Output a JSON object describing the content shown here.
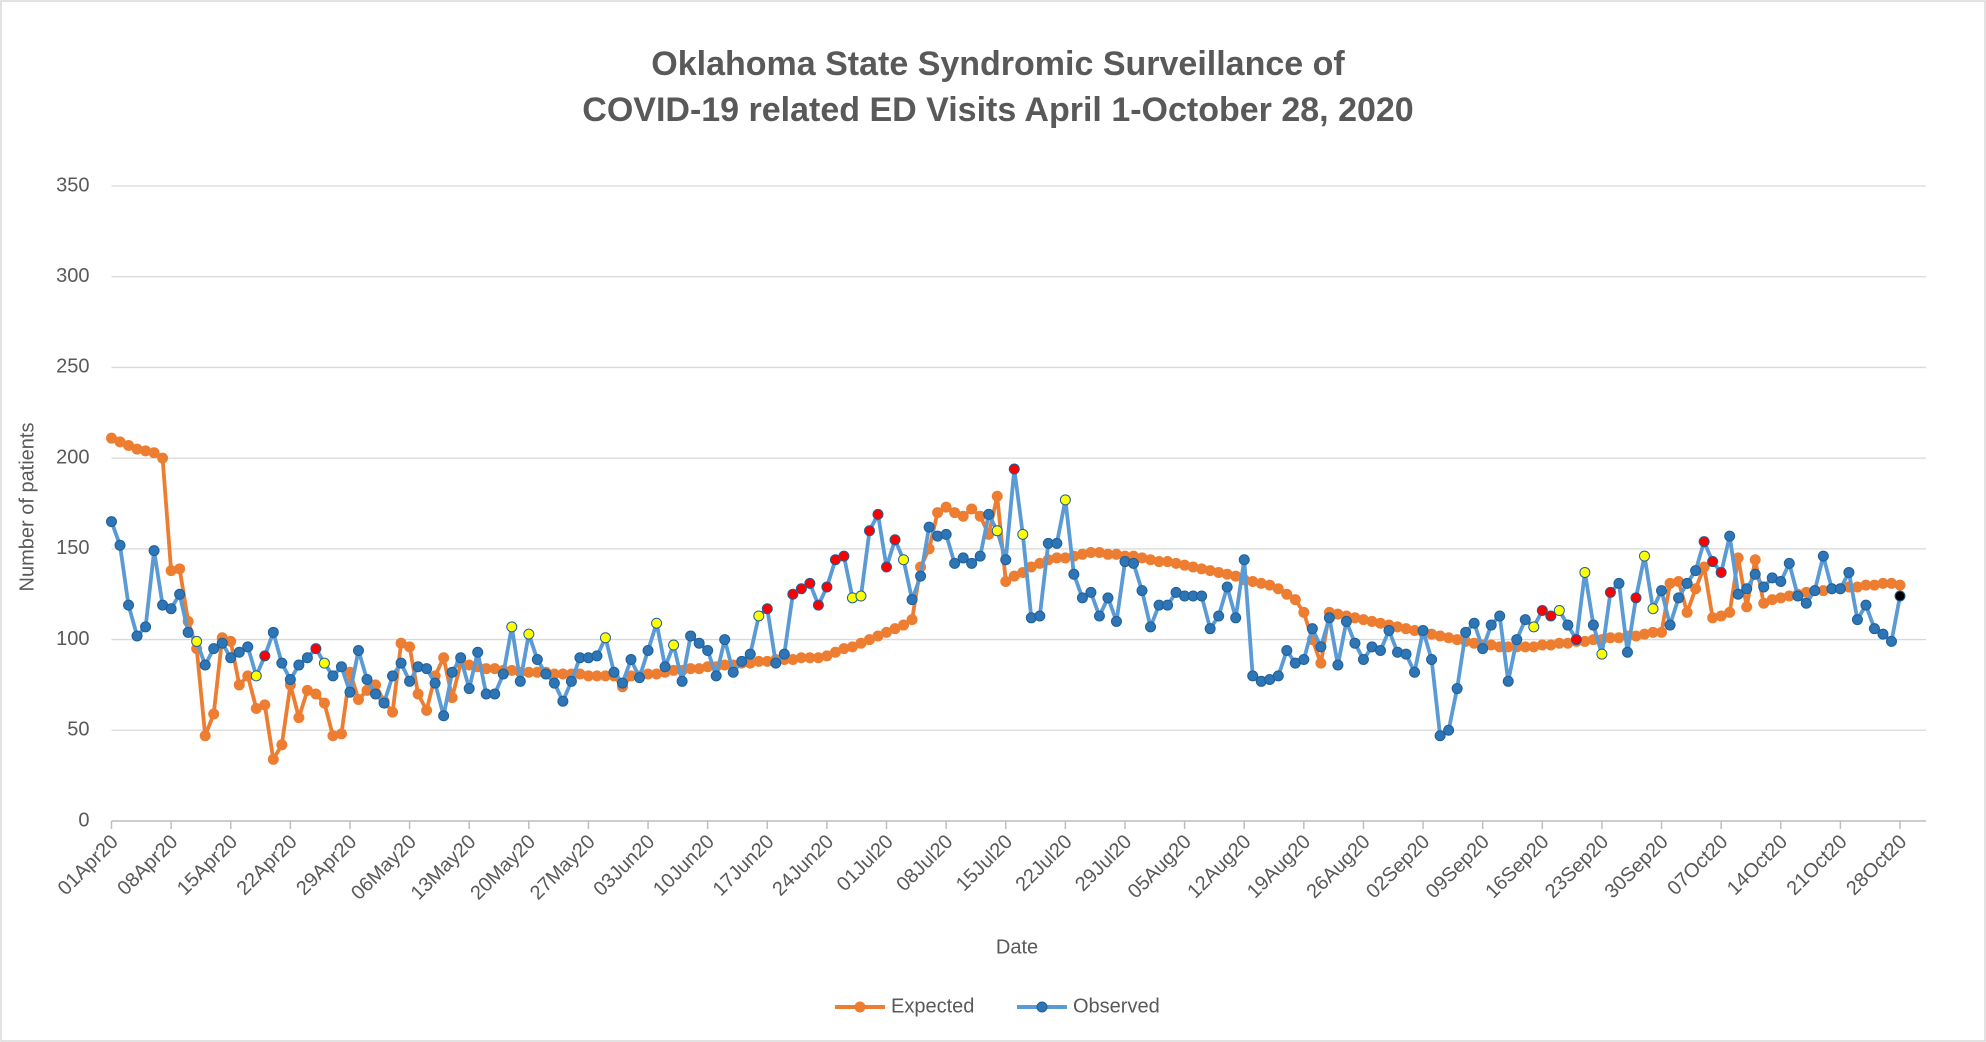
{
  "chart_data": {
    "type": "line",
    "title": [
      "Oklahoma State Syndromic Surveillance of",
      "COVID-19 related ED Visits April 1-October 28, 2020"
    ],
    "x_label": "Date",
    "y_label": "Number of patients",
    "ylim": [
      0,
      350
    ],
    "yticks": [
      0,
      50,
      100,
      150,
      200,
      250,
      300,
      350
    ],
    "grid": true,
    "legend": "bottom",
    "categories": [
      "01Apr20",
      null,
      null,
      null,
      null,
      null,
      null,
      "08Apr20",
      null,
      null,
      null,
      null,
      null,
      null,
      "15Apr20",
      null,
      null,
      null,
      null,
      null,
      null,
      "22Apr20",
      null,
      null,
      null,
      null,
      null,
      null,
      "29Apr20",
      null,
      null,
      null,
      null,
      null,
      null,
      "06May20",
      null,
      null,
      null,
      null,
      null,
      null,
      "13May20",
      null,
      null,
      null,
      null,
      null,
      null,
      "20May20",
      null,
      null,
      null,
      null,
      null,
      null,
      "27May20",
      null,
      null,
      null,
      null,
      null,
      null,
      "03Jun20",
      null,
      null,
      null,
      null,
      null,
      null,
      "10Jun20",
      null,
      null,
      null,
      null,
      null,
      null,
      "17Jun20",
      null,
      null,
      null,
      null,
      null,
      null,
      "24Jun20",
      null,
      null,
      null,
      null,
      null,
      null,
      "01Jul20",
      null,
      null,
      null,
      null,
      null,
      null,
      "08Jul20",
      null,
      null,
      null,
      null,
      null,
      null,
      "15Jul20",
      null,
      null,
      null,
      null,
      null,
      null,
      "22Jul20",
      null,
      null,
      null,
      null,
      null,
      null,
      "29Jul20",
      null,
      null,
      null,
      null,
      null,
      null,
      "05Aug20",
      null,
      null,
      null,
      null,
      null,
      null,
      "12Aug20",
      null,
      null,
      null,
      null,
      null,
      null,
      "19Aug20",
      null,
      null,
      null,
      null,
      null,
      null,
      "26Aug20",
      null,
      null,
      null,
      null,
      null,
      null,
      "02Sep20",
      null,
      null,
      null,
      null,
      null,
      null,
      "09Sep20",
      null,
      null,
      null,
      null,
      null,
      null,
      "16Sep20",
      null,
      null,
      null,
      null,
      null,
      null,
      "23Sep20",
      null,
      null,
      null,
      null,
      null,
      null,
      "30Sep20",
      null,
      null,
      null,
      null,
      null,
      null,
      "07Oct20",
      null,
      null,
      null,
      null,
      null,
      null,
      "14Oct20",
      null,
      null,
      null,
      null,
      null,
      null,
      "21Oct20",
      null,
      null,
      null,
      null,
      null,
      null,
      "28Oct20"
    ],
    "series": [
      {
        "name": "Expected",
        "color": "#ed7d31",
        "marker_color": "#ed7d31",
        "values": [
          211,
          209,
          207,
          205,
          204,
          203,
          200,
          138,
          139,
          110,
          95,
          47,
          59,
          101,
          99,
          75,
          80,
          62,
          64,
          34,
          42,
          75,
          57,
          72,
          70,
          65,
          47,
          48,
          82,
          67,
          72,
          75,
          66,
          60,
          98,
          96,
          70,
          61,
          80,
          90,
          68,
          87,
          86,
          85,
          84,
          84,
          83,
          83,
          82,
          82,
          82,
          82,
          81,
          81,
          81,
          81,
          80,
          80,
          80,
          80,
          74,
          80,
          80,
          81,
          81,
          82,
          83,
          83,
          84,
          84,
          85,
          85,
          86,
          86,
          87,
          87,
          88,
          88,
          89,
          89,
          89,
          90,
          90,
          90,
          91,
          93,
          95,
          96,
          98,
          100,
          102,
          104,
          106,
          108,
          111,
          140,
          150,
          170,
          173,
          170,
          168,
          172,
          168,
          158,
          179,
          132,
          135,
          137,
          140,
          142,
          144,
          145,
          145,
          146,
          147,
          148,
          148,
          147,
          147,
          146,
          146,
          145,
          144,
          143,
          143,
          142,
          141,
          140,
          139,
          138,
          137,
          136,
          135,
          133,
          132,
          131,
          130,
          128,
          125,
          122,
          115,
          100,
          87,
          115,
          114,
          113,
          112,
          111,
          110,
          109,
          108,
          107,
          106,
          105,
          104,
          103,
          102,
          101,
          100,
          99,
          98,
          97,
          97,
          96,
          96,
          96,
          96,
          96,
          97,
          97,
          98,
          98,
          99,
          99,
          100,
          100,
          101,
          101,
          102,
          102,
          103,
          104,
          104,
          131,
          132,
          115,
          128,
          140,
          112,
          113,
          115,
          145,
          118,
          144,
          120,
          122,
          123,
          124,
          125,
          126,
          127,
          127,
          128,
          128,
          129,
          129,
          130,
          130,
          131,
          131,
          130
        ]
      },
      {
        "name": "Observed",
        "color": "#5b9bd5",
        "values": [
          165,
          152,
          119,
          102,
          107,
          149,
          119,
          117,
          125,
          104,
          99,
          86,
          95,
          98,
          90,
          93,
          96,
          80,
          91,
          104,
          87,
          78,
          86,
          90,
          95,
          87,
          80,
          85,
          71,
          94,
          78,
          70,
          65,
          80,
          87,
          77,
          85,
          84,
          76,
          58,
          82,
          90,
          73,
          93,
          70,
          70,
          81,
          107,
          77,
          103,
          89,
          81,
          76,
          66,
          77,
          90,
          90,
          91,
          101,
          82,
          76,
          89,
          79,
          94,
          109,
          85,
          97,
          77,
          102,
          98,
          94,
          80,
          100,
          82,
          88,
          92,
          113,
          117,
          87,
          92,
          125,
          128,
          131,
          119,
          129,
          144,
          146,
          123,
          124,
          160,
          169,
          140,
          155,
          144,
          122,
          135,
          162,
          157,
          158,
          142,
          145,
          142,
          146,
          169,
          160,
          144,
          194,
          158,
          112,
          113,
          153,
          153,
          177,
          136,
          123,
          126,
          113,
          123,
          110,
          143,
          142,
          127,
          107,
          119,
          119,
          126,
          124,
          124,
          124,
          106,
          113,
          129,
          112,
          144,
          80,
          77,
          78,
          80,
          94,
          87,
          89,
          106,
          96,
          112,
          86,
          110,
          98,
          89,
          96,
          94,
          105,
          93,
          92,
          82,
          105,
          89,
          47,
          50,
          73,
          104,
          109,
          95,
          108,
          113,
          77,
          100,
          111,
          107,
          116,
          113,
          116,
          108,
          100,
          137,
          108,
          92,
          126,
          131,
          93,
          123,
          146,
          117,
          127,
          108,
          123,
          131,
          138,
          154,
          143,
          137,
          157,
          125,
          128,
          136,
          129,
          134,
          132,
          142,
          124,
          120,
          127,
          146,
          128,
          128,
          137,
          111,
          119,
          106,
          103,
          99,
          124
        ],
        "point_colors": [
          "#2e75b6",
          "#2e75b6",
          "#2e75b6",
          "#2e75b6",
          "#2e75b6",
          "#2e75b6",
          "#2e75b6",
          "#2e75b6",
          "#2e75b6",
          "#2e75b6",
          "#ffff00",
          "#2e75b6",
          "#2e75b6",
          "#2e75b6",
          "#2e75b6",
          "#2e75b6",
          "#2e75b6",
          "#ffff00",
          "#ff0000",
          "#2e75b6",
          "#2e75b6",
          "#2e75b6",
          "#2e75b6",
          "#2e75b6",
          "#ff0000",
          "#ffff00",
          "#2e75b6",
          "#2e75b6",
          "#2e75b6",
          "#2e75b6",
          "#2e75b6",
          "#2e75b6",
          "#2e75b6",
          "#2e75b6",
          "#2e75b6",
          "#2e75b6",
          "#2e75b6",
          "#2e75b6",
          "#2e75b6",
          "#2e75b6",
          "#2e75b6",
          "#2e75b6",
          "#2e75b6",
          "#2e75b6",
          "#2e75b6",
          "#2e75b6",
          "#2e75b6",
          "#ffff00",
          "#2e75b6",
          "#ffff00",
          "#2e75b6",
          "#2e75b6",
          "#2e75b6",
          "#2e75b6",
          "#2e75b6",
          "#2e75b6",
          "#2e75b6",
          "#2e75b6",
          "#ffff00",
          "#2e75b6",
          "#2e75b6",
          "#2e75b6",
          "#2e75b6",
          "#2e75b6",
          "#ffff00",
          "#2e75b6",
          "#ffff00",
          "#2e75b6",
          "#2e75b6",
          "#2e75b6",
          "#2e75b6",
          "#2e75b6",
          "#2e75b6",
          "#2e75b6",
          "#2e75b6",
          "#2e75b6",
          "#ffff00",
          "#ff0000",
          "#2e75b6",
          "#2e75b6",
          "#ff0000",
          "#ff0000",
          "#ff0000",
          "#ff0000",
          "#ff0000",
          "#ff0000",
          "#ff0000",
          "#ffff00",
          "#ffff00",
          "#ff0000",
          "#ff0000",
          "#ff0000",
          "#ff0000",
          "#ffff00",
          "#2e75b6",
          "#2e75b6",
          "#2e75b6",
          "#2e75b6",
          "#2e75b6",
          "#2e75b6",
          "#2e75b6",
          "#2e75b6",
          "#2e75b6",
          "#2e75b6",
          "#ffff00",
          "#2e75b6",
          "#ff0000",
          "#ffff00",
          "#2e75b6",
          "#2e75b6",
          "#2e75b6",
          "#2e75b6",
          "#ffff00",
          "#2e75b6",
          "#2e75b6",
          "#2e75b6",
          "#2e75b6",
          "#2e75b6",
          "#2e75b6",
          "#2e75b6",
          "#2e75b6",
          "#2e75b6",
          "#2e75b6",
          "#2e75b6",
          "#2e75b6",
          "#2e75b6",
          "#2e75b6",
          "#2e75b6",
          "#2e75b6",
          "#2e75b6",
          "#2e75b6",
          "#2e75b6",
          "#2e75b6",
          "#2e75b6",
          "#2e75b6",
          "#2e75b6",
          "#2e75b6",
          "#2e75b6",
          "#2e75b6",
          "#2e75b6",
          "#2e75b6",
          "#2e75b6",
          "#2e75b6",
          "#2e75b6",
          "#2e75b6",
          "#2e75b6",
          "#2e75b6",
          "#2e75b6",
          "#2e75b6",
          "#2e75b6",
          "#2e75b6",
          "#2e75b6",
          "#2e75b6",
          "#2e75b6",
          "#2e75b6",
          "#2e75b6",
          "#2e75b6",
          "#2e75b6",
          "#2e75b6",
          "#2e75b6",
          "#2e75b6",
          "#2e75b6",
          "#2e75b6",
          "#2e75b6",
          "#2e75b6",
          "#2e75b6",
          "#2e75b6",
          "#ffff00",
          "#ff0000",
          "#ff0000",
          "#ffff00",
          "#2e75b6",
          "#ff0000",
          "#ffff00",
          "#2e75b6",
          "#ffff00",
          "#ff0000",
          "#2e75b6",
          "#2e75b6",
          "#ff0000",
          "#ffff00",
          "#ffff00",
          "#2e75b6",
          "#2e75b6",
          "#2e75b6",
          "#2e75b6",
          "#2e75b6",
          "#ff0000",
          "#ff0000",
          "#ff0000",
          "#2e75b6",
          "#2e75b6",
          "#2e75b6",
          "#2e75b6",
          "#2e75b6",
          "#2e75b6",
          "#2e75b6",
          "#2e75b6",
          "#2e75b6",
          "#2e75b6",
          "#2e75b6",
          "#2e75b6",
          "#2e75b6",
          "#2e75b6",
          "#2e75b6",
          "#2e75b6",
          "#2e75b6",
          "#2e75b6",
          "#2e75b6",
          "#2e75b6"
        ]
      }
    ]
  }
}
